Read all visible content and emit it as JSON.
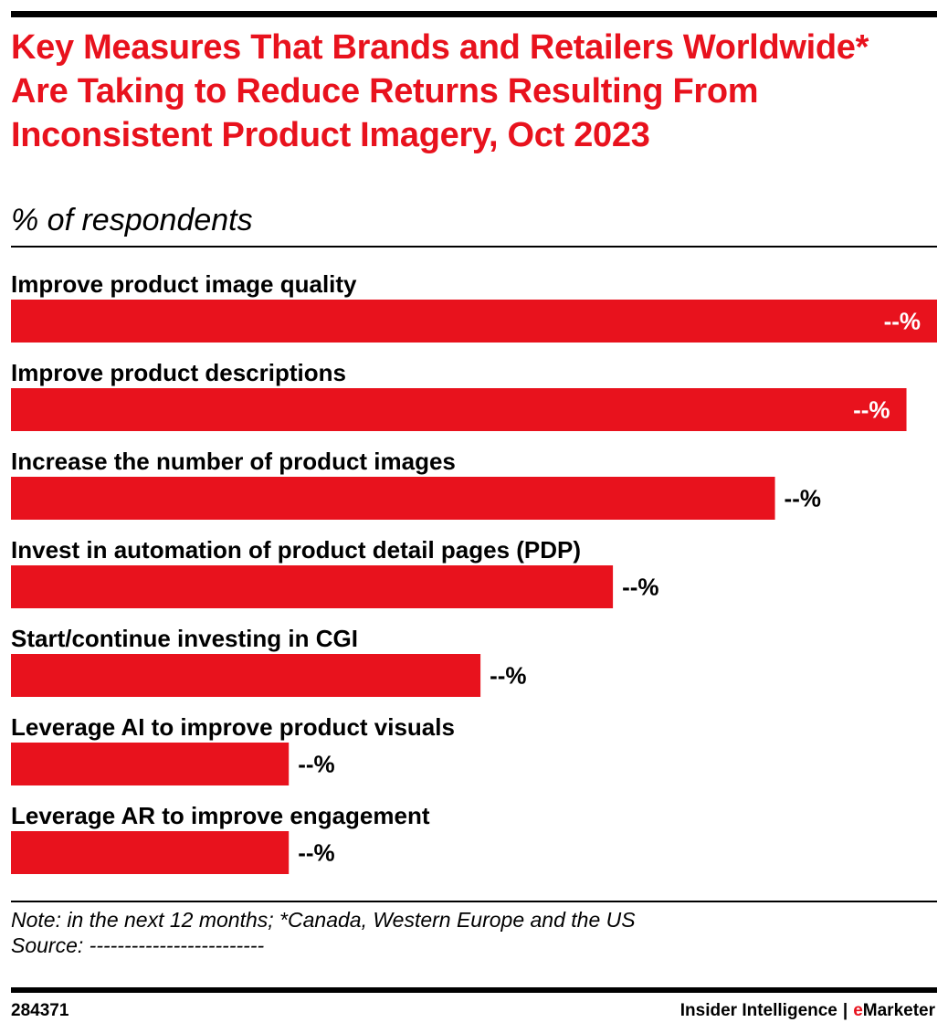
{
  "title": "Key Measures That Brands and Retailers Worldwide* Are Taking to Reduce Returns Resulting From Inconsistent Product Imagery, Oct 2023",
  "subtitle": "% of respondents",
  "colors": {
    "accent": "#e8121d",
    "text": "#000000",
    "value_on_bar": "#ffffff"
  },
  "chart_data": {
    "type": "bar",
    "orientation": "horizontal",
    "categories": [
      "Improve product image quality",
      "Improve product descriptions",
      "Increase the number of product images",
      "Invest in automation of product detail pages (PDP)",
      "Start/continue investing in CGI",
      "Leverage AI to improve product visuals",
      "Leverage AR to improve engagement"
    ],
    "values": [
      100,
      96.7,
      82.5,
      65,
      50.7,
      30,
      30
    ],
    "value_labels": [
      "--%",
      "--%",
      "--%",
      "--%",
      "--%",
      "--%",
      "--%"
    ],
    "xlim": [
      0,
      100
    ],
    "grid": false
  },
  "note": {
    "line1": "Note: in the next 12 months; *Canada, Western Europe and the US",
    "line2": "Source: -------------------------"
  },
  "footer": {
    "chart_id": "284371",
    "brand_primary": "Insider Intelligence",
    "brand_separator": "|",
    "brand_e": "e",
    "brand_rest": "Marketer"
  }
}
